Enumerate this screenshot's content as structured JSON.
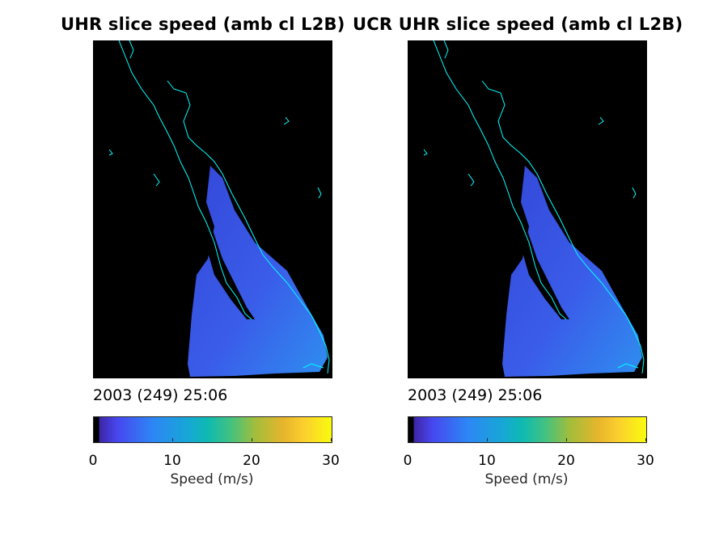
{
  "panels": [
    {
      "title": "UHR slice speed (amb cl L2B)",
      "timestamp": "2003 (249) 25:06",
      "colorbar": {
        "label": "Speed (m/s)",
        "ticks": [
          "0",
          "10",
          "20",
          "30"
        ],
        "range": [
          0,
          30
        ],
        "colormap": "parula"
      }
    },
    {
      "title": "UCR UHR slice speed (amb cl L2B)",
      "timestamp": "2003 (249) 25:06",
      "colorbar": {
        "label": "Speed (m/s)",
        "ticks": [
          "0",
          "10",
          "20",
          "30"
        ],
        "range": [
          0,
          30
        ],
        "colormap": "parula"
      }
    }
  ],
  "colors": {
    "background_map": "#000000",
    "coastline": "#00ffff",
    "swath_fill": "#3d5ef0"
  }
}
